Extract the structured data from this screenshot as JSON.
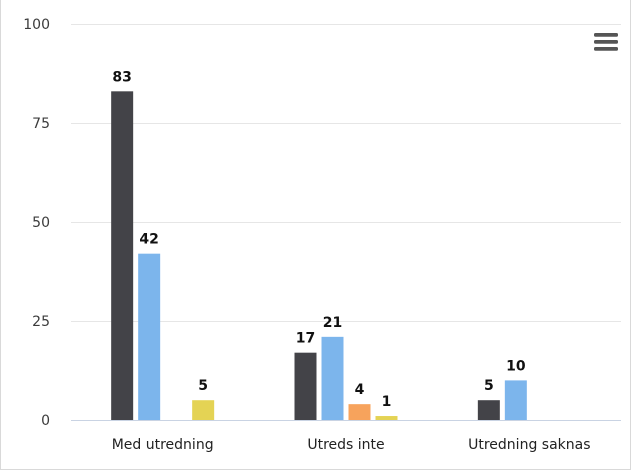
{
  "chart_data": {
    "type": "bar",
    "title": "",
    "xlabel": "",
    "ylabel": "",
    "categories": [
      "Med utredning",
      "Utreds inte",
      "Utredning saknas"
    ],
    "series": [
      {
        "values": [
          83,
          17,
          5
        ],
        "color": "#434348"
      },
      {
        "values": [
          42,
          21,
          10
        ],
        "color": "#7cb5ec"
      },
      {
        "values": [
          null,
          4,
          null
        ],
        "color": "#f7a35c"
      },
      {
        "values": [
          5,
          1,
          null
        ],
        "color": "#e4d354"
      }
    ],
    "yticks": [
      "0",
      "25",
      "50",
      "75",
      "100"
    ],
    "ylim": [
      0,
      100
    ],
    "grid": true,
    "legend": "none",
    "data_labels": true
  },
  "toolbar": {
    "menu_icon": "hamburger-menu-icon"
  }
}
